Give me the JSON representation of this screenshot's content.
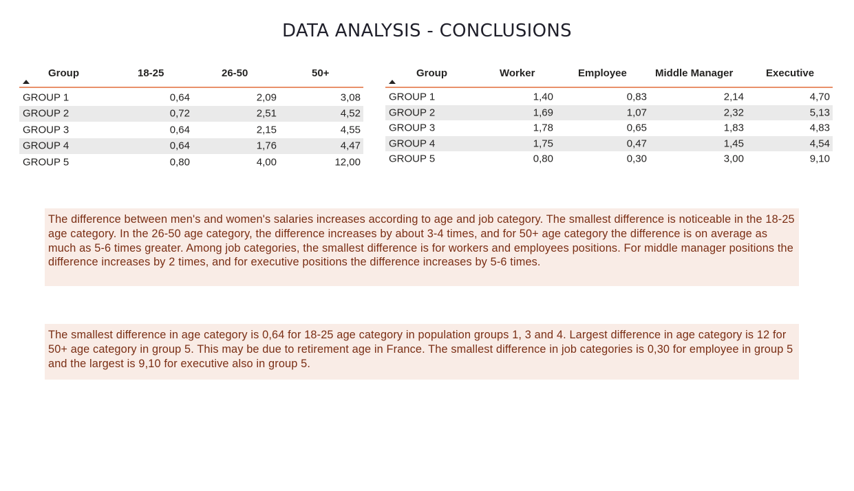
{
  "title": "DATA ANALYSIS - CONCLUSIONS",
  "age_table": {
    "headers": [
      "Group",
      "18-25",
      "26-50",
      "50+"
    ],
    "rows": [
      [
        "GROUP 1",
        "0,64",
        "2,09",
        "3,08"
      ],
      [
        "GROUP 2",
        "0,72",
        "2,51",
        "4,52"
      ],
      [
        "GROUP 3",
        "0,64",
        "2,15",
        "4,55"
      ],
      [
        "GROUP 4",
        "0,64",
        "1,76",
        "4,47"
      ],
      [
        "GROUP 5",
        "0,80",
        "4,00",
        "12,00"
      ]
    ]
  },
  "job_table": {
    "headers": [
      "Group",
      "Worker",
      "Employee",
      "Middle Manager",
      "Executive"
    ],
    "rows": [
      [
        "GROUP 1",
        "1,40",
        "0,83",
        "2,14",
        "4,70"
      ],
      [
        "GROUP 2",
        "1,69",
        "1,07",
        "2,32",
        "5,13"
      ],
      [
        "GROUP 3",
        "1,78",
        "0,65",
        "1,83",
        "4,83"
      ],
      [
        "GROUP 4",
        "1,75",
        "0,47",
        "1,45",
        "4,54"
      ],
      [
        "GROUP 5",
        "0,80",
        "0,30",
        "3,00",
        "9,10"
      ]
    ]
  },
  "conclusions": {
    "paragraph_1": "The difference between men's and women's salaries increases according to age and job category. The smallest difference is noticeable in the 18-25 age category. In the 26-50 age category, the difference increases by about 3-4 times, and for 50+ age category the difference is on average as much as 5-6 times greater. Among job categories, the smallest difference is for workers and employees positions. For middle manager positions the difference increases by 2 times, and for executive positions the difference increases by 5-6 times.",
    "paragraph_2": "The smallest difference in age category is 0,64 for 18-25 age category in population groups 1, 3 and 4. Largest difference in age category is 12 for 50+ age category in group 5. This may be due to retirement age in France.  The smallest difference in job categories is 0,30 for employee in group 5 and the largest is 9,10 for executive also in group 5."
  },
  "colors": {
    "header_underline": "#e8906a",
    "note_background": "#f9ece6",
    "note_text": "#7a2e14",
    "alt_row": "#eaeaea"
  },
  "icons": {
    "sort": "sort-ascending-icon"
  }
}
